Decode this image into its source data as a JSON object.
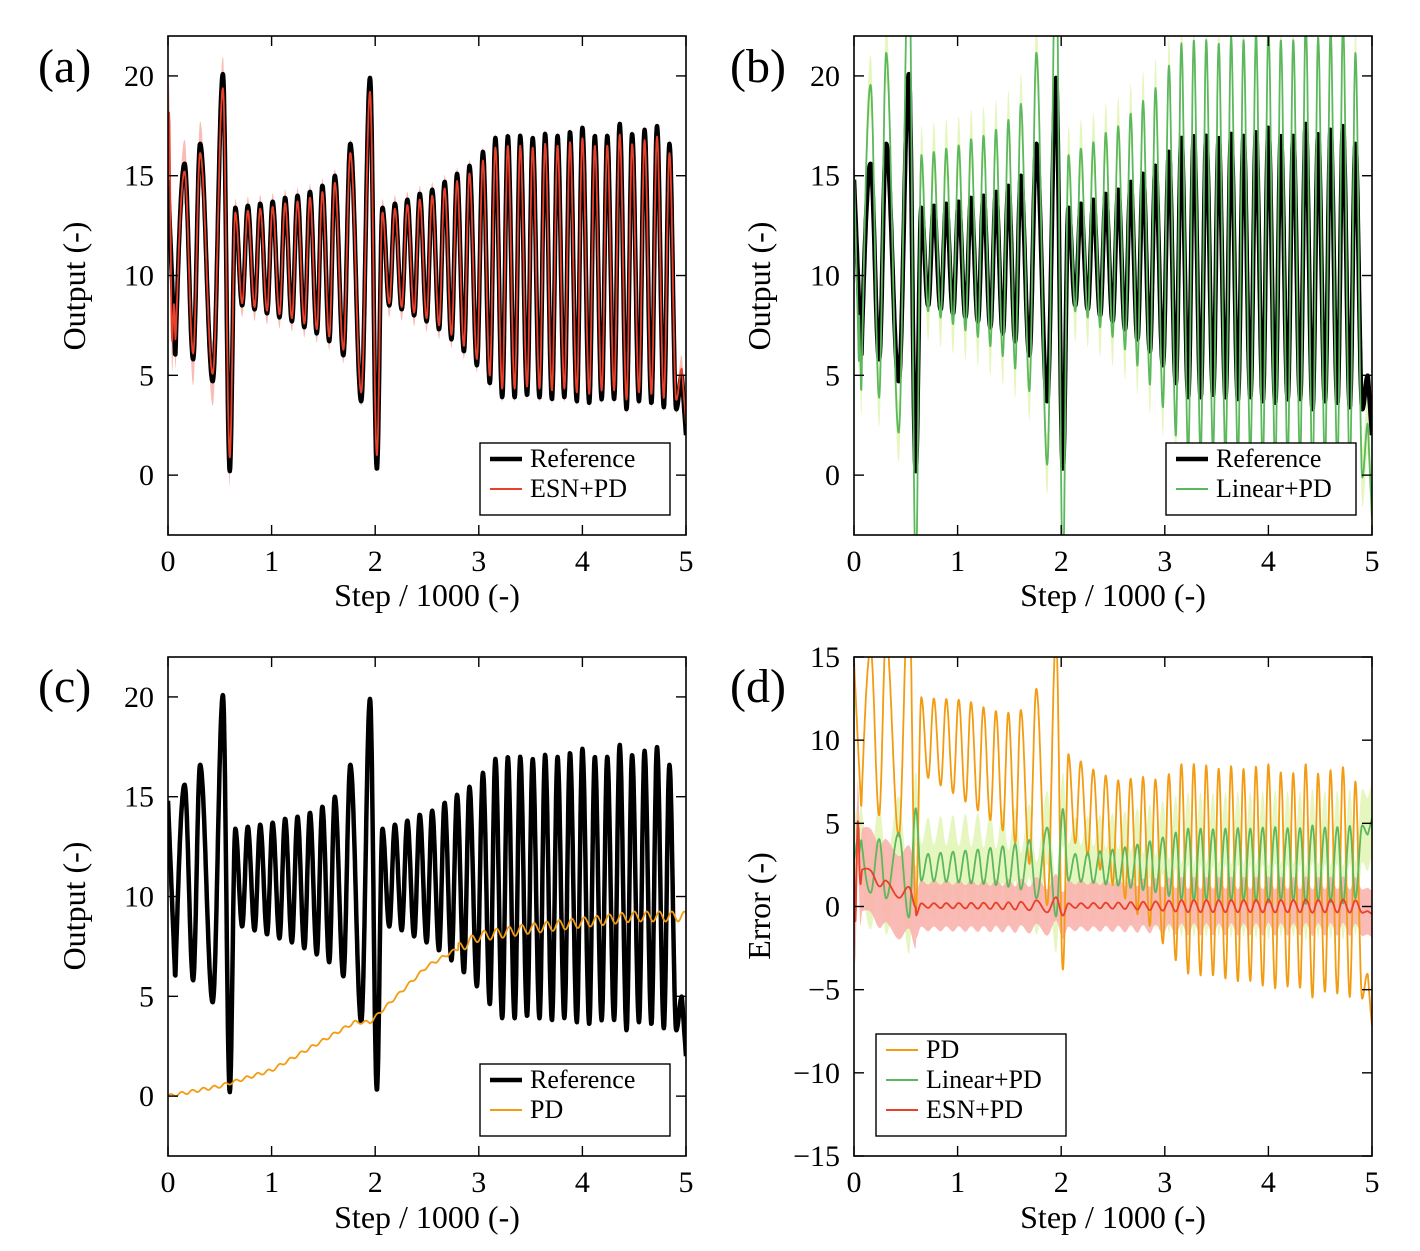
{
  "figure": {
    "description_note": "Four-panel comparison of controller outputs and errors"
  },
  "colors": {
    "reference": "#000000",
    "esn": "#e8402a",
    "esn_band": "#f9b3ad",
    "linear": "#5cb85c",
    "linear_band": "#e3f5b8",
    "pd": "#f39c12"
  },
  "chart_data": [
    {
      "panel_label": "(a)",
      "type": "line",
      "title": "",
      "xlabel": "Step / 1000 (-)",
      "ylabel": "Output (-)",
      "xlim": [
        0,
        5
      ],
      "ylim": [
        -3,
        22
      ],
      "xticks": [
        0,
        1,
        2,
        3,
        4,
        5
      ],
      "yticks": [
        0,
        5,
        10,
        15,
        20
      ],
      "legend_position": "bottom-right",
      "series": [
        {
          "name": "Reference",
          "key": "reference",
          "style": "thick",
          "peaks": "reference_peaks",
          "min": "reference_min"
        },
        {
          "name": "ESN+PD",
          "key": "esn",
          "style": "thin",
          "band": true,
          "note": "tracks reference with initial transient"
        }
      ]
    },
    {
      "panel_label": "(b)",
      "type": "line",
      "title": "",
      "xlabel": "Step / 1000 (-)",
      "ylabel": "Output (-)",
      "xlim": [
        0,
        5
      ],
      "ylim": [
        -3,
        22
      ],
      "xticks": [
        0,
        1,
        2,
        3,
        4,
        5
      ],
      "yticks": [
        0,
        5,
        10,
        15,
        20
      ],
      "legend_position": "bottom-right",
      "series": [
        {
          "name": "Reference",
          "key": "reference",
          "style": "thick"
        },
        {
          "name": "Linear+PD",
          "key": "linear",
          "style": "thin",
          "band": true,
          "note": "overshoots beyond axis limits"
        }
      ]
    },
    {
      "panel_label": "(c)",
      "type": "line",
      "title": "",
      "xlabel": "Step / 1000 (-)",
      "ylabel": "Output (-)",
      "xlim": [
        0,
        5
      ],
      "ylim": [
        -3,
        22
      ],
      "xticks": [
        0,
        1,
        2,
        3,
        4,
        5
      ],
      "yticks": [
        0,
        5,
        10,
        15,
        20
      ],
      "legend_position": "bottom-right",
      "series": [
        {
          "name": "Reference",
          "key": "reference",
          "style": "thick"
        },
        {
          "name": "PD",
          "key": "pd",
          "style": "thin",
          "x": [
            0,
            0.5,
            1.0,
            1.5,
            1.8,
            1.95,
            2.5,
            3.0,
            3.5,
            4.0,
            4.5,
            5.0
          ],
          "y": [
            0,
            0.5,
            1.3,
            2.8,
            3.7,
            3.7,
            6.5,
            8.0,
            8.4,
            8.7,
            9.0,
            9.0
          ]
        }
      ]
    },
    {
      "panel_label": "(d)",
      "type": "line",
      "title": "",
      "xlabel": "Step / 1000 (-)",
      "ylabel": "Error (-)",
      "xlim": [
        0,
        5
      ],
      "ylim": [
        -15,
        15
      ],
      "xticks": [
        0,
        1,
        2,
        3,
        4,
        5
      ],
      "yticks": [
        -15,
        -10,
        -5,
        0,
        5,
        10,
        15
      ],
      "ytick_labels": [
        "−15",
        "−10",
        "−5",
        "0",
        "5",
        "10",
        "15"
      ],
      "legend_position": "bottom-left",
      "series": [
        {
          "name": "PD",
          "key": "pd",
          "style": "thin"
        },
        {
          "name": "Linear+PD",
          "key": "linear",
          "style": "thin",
          "band": true
        },
        {
          "name": "ESN+PD",
          "key": "esn",
          "style": "thin",
          "band": true
        }
      ]
    }
  ],
  "reference_peaks": {
    "x": [
      0.16,
      0.31,
      0.53,
      0.65,
      0.77,
      0.89,
      1.01,
      1.13,
      1.25,
      1.37,
      1.49,
      1.61,
      1.76,
      1.95,
      2.07,
      2.19,
      2.31,
      2.43,
      2.55,
      2.67,
      2.79,
      2.91,
      3.04,
      3.16,
      3.28,
      3.4,
      3.52,
      3.64,
      3.76,
      3.88,
      4.0,
      4.12,
      4.24,
      4.36,
      4.48,
      4.6,
      4.72,
      4.84,
      4.96
    ],
    "y": [
      15.6,
      16.6,
      20.1,
      13.4,
      13.5,
      13.6,
      13.7,
      13.9,
      14.0,
      14.2,
      14.5,
      15.0,
      16.6,
      19.9,
      13.4,
      13.6,
      13.8,
      14.1,
      14.3,
      14.7,
      15.1,
      15.5,
      16.2,
      16.9,
      17.0,
      17.0,
      16.9,
      17.1,
      17.0,
      17.2,
      17.4,
      17.0,
      17.0,
      17.6,
      17.1,
      17.3,
      17.5,
      16.6,
      5.0
    ],
    "troughs": [
      5.8,
      4.7,
      0.2,
      8.5,
      8.3,
      8.1,
      7.9,
      7.7,
      7.4,
      7.1,
      6.7,
      6.0,
      3.7,
      0.3,
      8.5,
      8.3,
      8.0,
      7.7,
      7.3,
      6.8,
      6.2,
      5.5,
      4.6,
      3.9,
      3.9,
      4.0,
      3.9,
      3.8,
      3.9,
      3.7,
      3.6,
      3.8,
      3.8,
      3.3,
      3.7,
      3.6,
      3.4,
      3.3,
      2.0
    ]
  },
  "legend": {
    "a": [
      "Reference",
      "ESN+PD"
    ],
    "b": [
      "Reference",
      "Linear+PD"
    ],
    "c": [
      "Reference",
      "PD"
    ],
    "d": [
      "PD",
      "Linear+PD",
      "ESN+PD"
    ]
  }
}
